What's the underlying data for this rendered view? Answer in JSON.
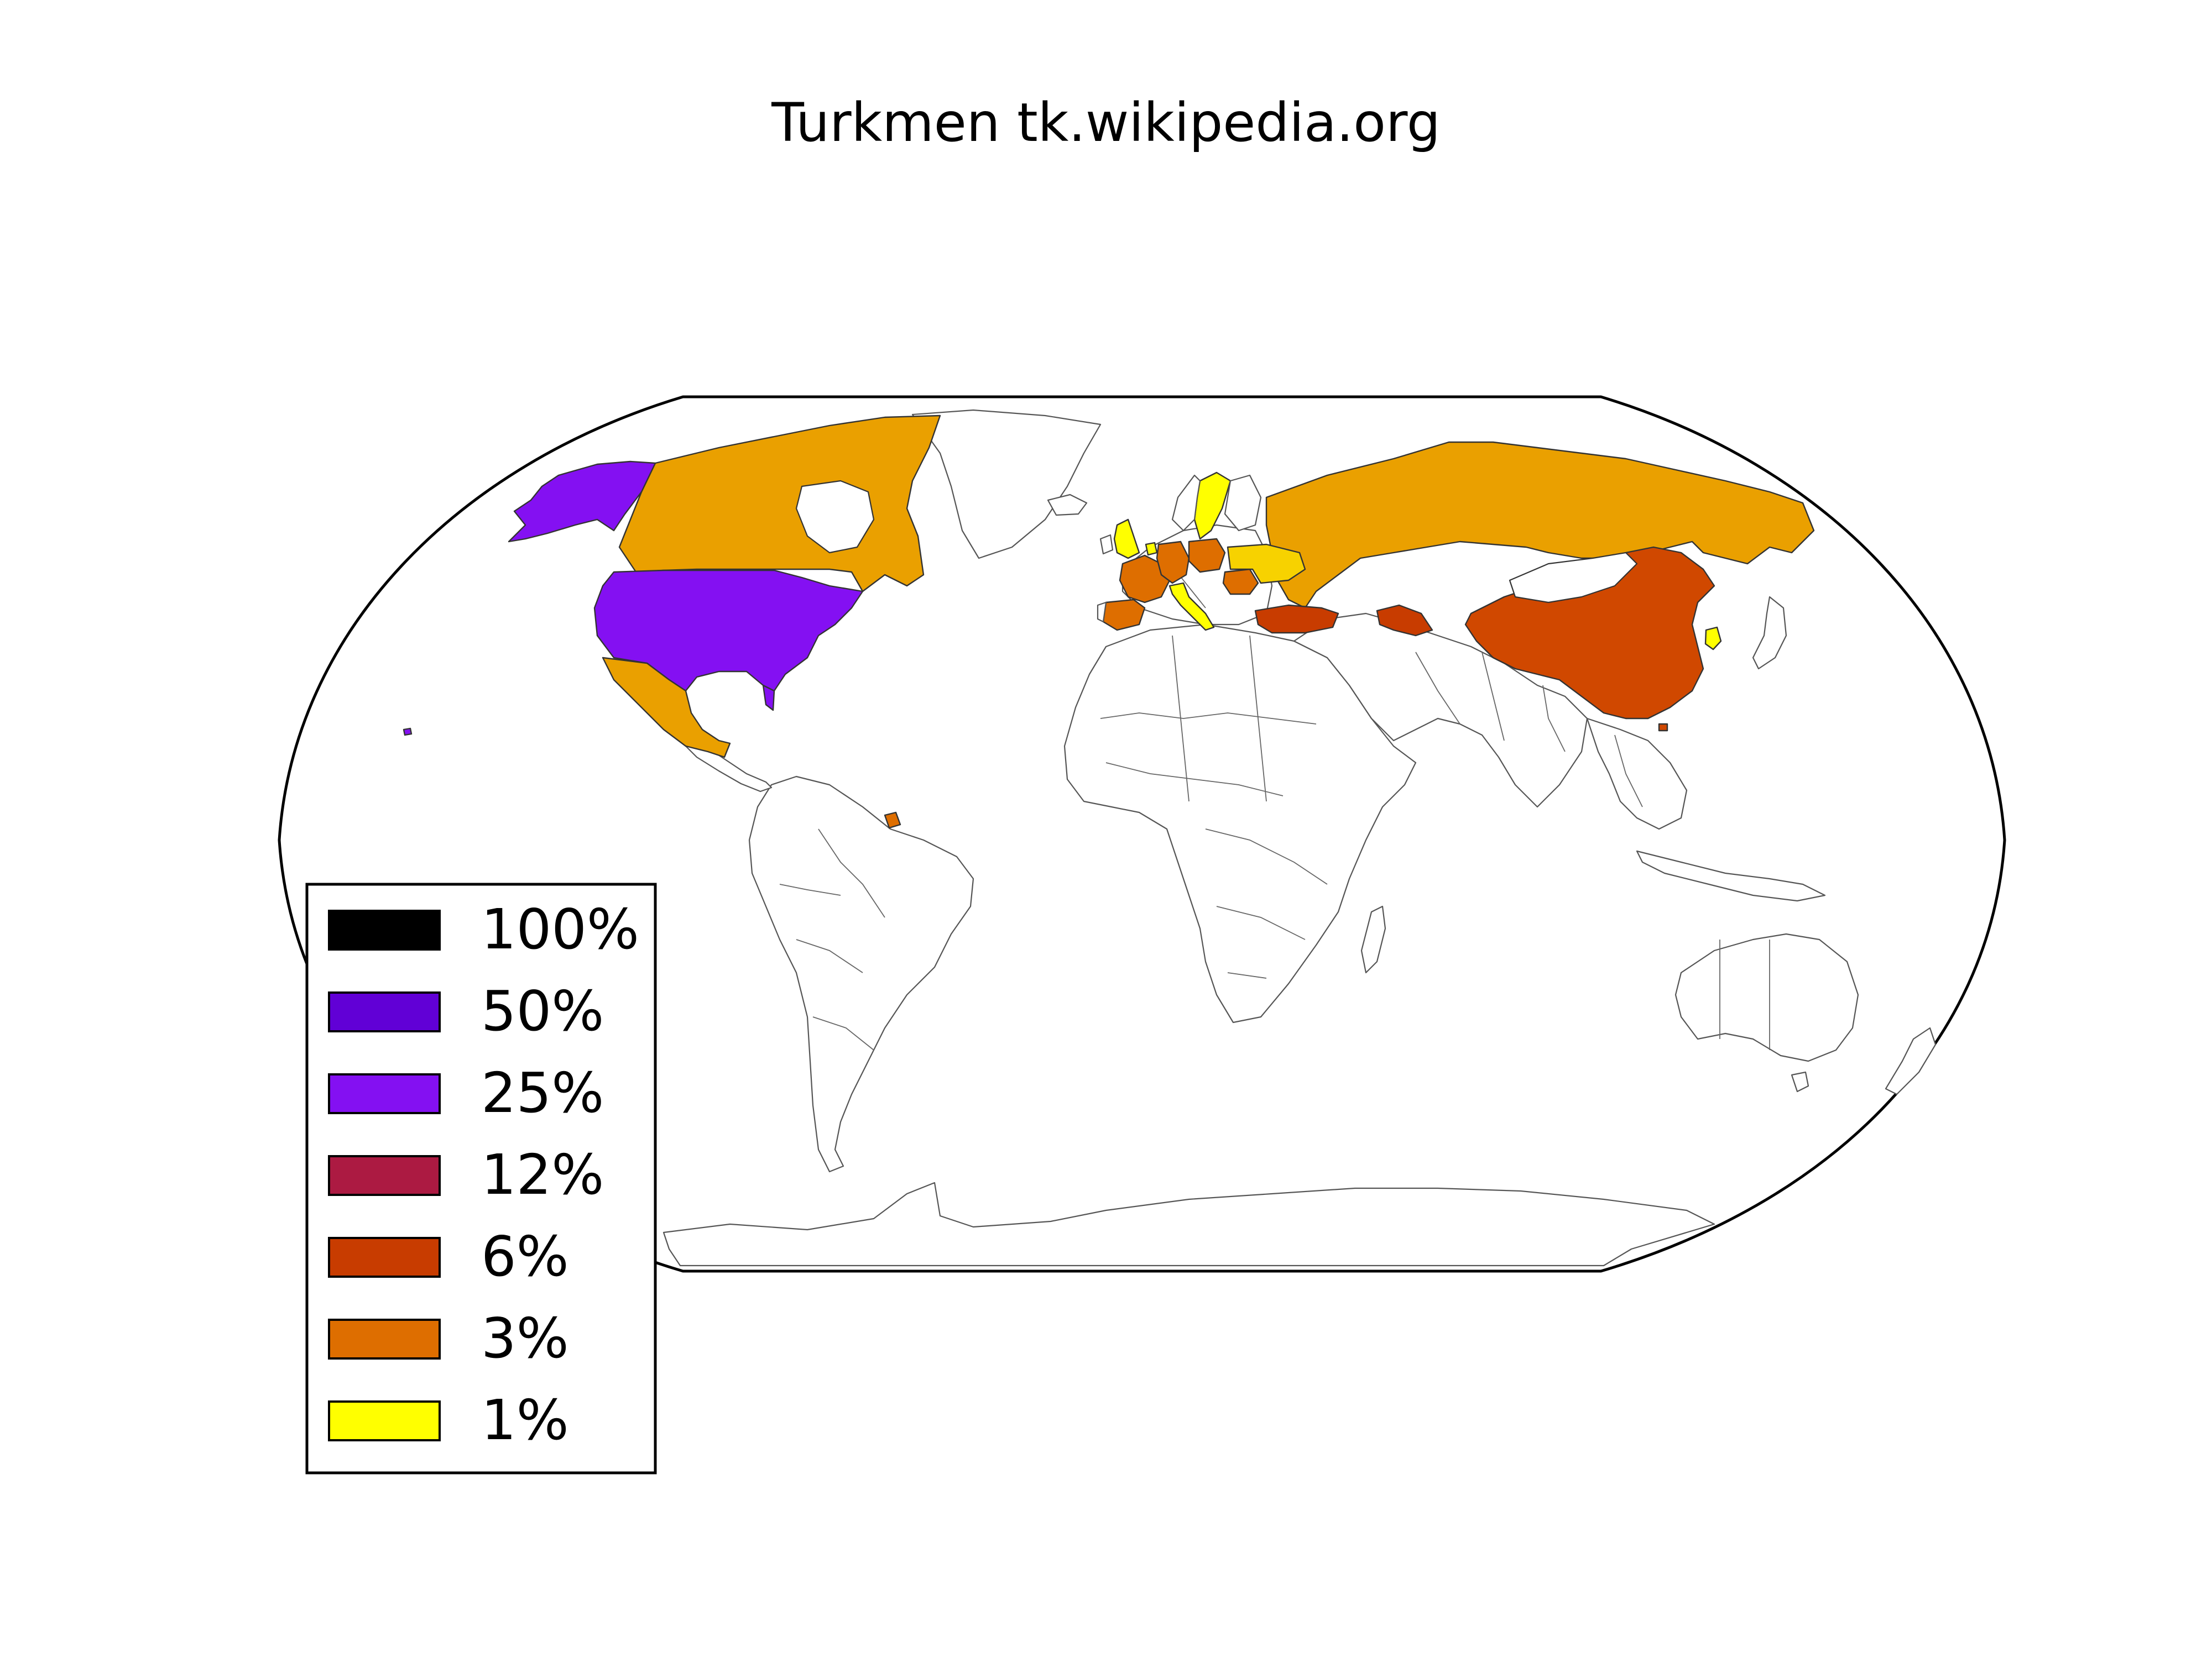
{
  "title": "Turkmen tk.wikipedia.org",
  "legend": [
    {
      "label": "100%",
      "color": "#000000"
    },
    {
      "label": "50%",
      "color": "#6100d6"
    },
    {
      "label": "25%",
      "color": "#8410f2"
    },
    {
      "label": "12%",
      "color": "#ac1a42"
    },
    {
      "label": "6%",
      "color": "#c83c00"
    },
    {
      "label": "3%",
      "color": "#de6e00"
    },
    {
      "label": "1%",
      "color": "#ffff00"
    }
  ],
  "shaded_regions": [
    {
      "region": "Alaska",
      "color": "#8410f2"
    },
    {
      "region": "United States",
      "color": "#8410f2"
    },
    {
      "region": "Canada",
      "color": "#eaa000"
    },
    {
      "region": "Mexico",
      "color": "#eaa000"
    },
    {
      "region": "Russia",
      "color": "#eaa000"
    },
    {
      "region": "Turkey",
      "color": "#c83c00"
    },
    {
      "region": "Turkmenistan",
      "color": "#c83c00"
    },
    {
      "region": "China",
      "color": "#d04800"
    },
    {
      "region": "Germany",
      "color": "#de6e00"
    },
    {
      "region": "Poland",
      "color": "#de6e00"
    },
    {
      "region": "France",
      "color": "#de6e00"
    },
    {
      "region": "Spain",
      "color": "#de6e00"
    },
    {
      "region": "Romania",
      "color": "#de6e00"
    },
    {
      "region": "Ukraine",
      "color": "#f7d200"
    },
    {
      "region": "Italy",
      "color": "#ffff00"
    },
    {
      "region": "Sweden",
      "color": "#ffff00"
    },
    {
      "region": "United Kingdom",
      "color": "#ffff00"
    },
    {
      "region": "Netherlands",
      "color": "#ffff00"
    },
    {
      "region": "South Korea",
      "color": "#ffff00"
    },
    {
      "region": "French Guiana",
      "color": "#de6e00"
    },
    {
      "region": "Hawaii",
      "color": "#8410f2"
    }
  ]
}
